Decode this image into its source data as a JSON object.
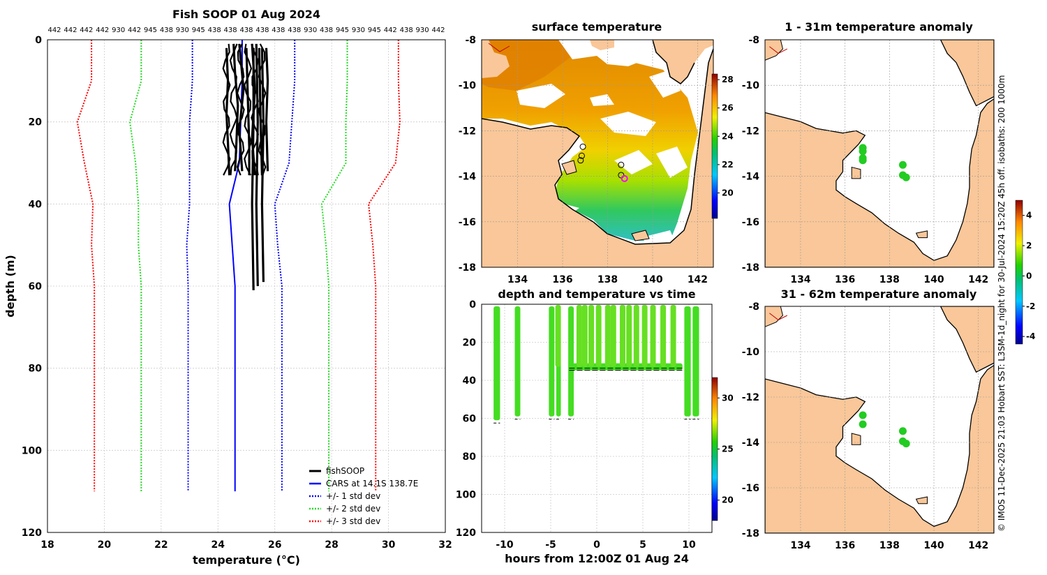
{
  "chart_data": [
    {
      "id": "profile",
      "type": "line",
      "title": "Fish SOOP 01 Aug 2024",
      "xlabel": "temperature (°C)",
      "ylabel": "depth (m)",
      "xlim": [
        18,
        32
      ],
      "ylim": [
        0,
        120
      ],
      "xticks": [
        18,
        20,
        22,
        24,
        26,
        28,
        30,
        32
      ],
      "yticks": [
        0,
        20,
        40,
        60,
        80,
        100,
        120
      ],
      "top_labels": [
        "442",
        "442",
        "442",
        "442",
        "930",
        "442",
        "945",
        "438",
        "930",
        "945",
        "438",
        "438",
        "438",
        "438",
        "438",
        "438",
        "930",
        "438",
        "945",
        "930",
        "945",
        "442",
        "438",
        "930",
        "442"
      ],
      "legend": [
        "fishSOOP",
        "CARS at 14.1S 138.7E",
        "+/- 1 std dev",
        "+/- 2 std dev",
        "+/- 3 std dev"
      ],
      "cars_depth": [
        0,
        10,
        20,
        30,
        40,
        50,
        60,
        110
      ],
      "cars_mean": [
        24.85,
        24.85,
        24.8,
        24.75,
        24.4,
        24.5,
        24.6,
        24.6
      ],
      "std_lines": [
        {
          "name": "+1 std",
          "color": "#0000ff",
          "values": [
            26.7,
            26.7,
            26.6,
            26.5,
            26.0,
            26.1,
            26.25,
            26.25
          ]
        },
        {
          "name": "-1 std",
          "color": "#0000ff",
          "values": [
            23.1,
            23.1,
            23.0,
            23.0,
            23.0,
            22.9,
            22.95,
            22.95
          ]
        },
        {
          "name": "+2 std",
          "color": "#22dd22",
          "values": [
            28.55,
            28.55,
            28.5,
            28.5,
            27.65,
            27.8,
            27.9,
            27.9
          ]
        },
        {
          "name": "-2 std",
          "color": "#22dd22",
          "values": [
            21.3,
            21.3,
            20.9,
            21.1,
            21.2,
            21.2,
            21.3,
            21.3
          ]
        },
        {
          "name": "+3 std",
          "color": "#ff0000",
          "values": [
            30.35,
            30.35,
            30.4,
            30.25,
            29.3,
            29.45,
            29.55,
            29.55
          ]
        },
        {
          "name": "-3 std",
          "color": "#ff0000",
          "values": [
            19.55,
            19.55,
            19.05,
            19.3,
            19.6,
            19.55,
            19.65,
            19.65
          ]
        }
      ],
      "fish_profiles": [
        {
          "depth": [
            2,
            10,
            18,
            25,
            33
          ],
          "temp": [
            24.3,
            24.35,
            24.3,
            24.35,
            24.4
          ]
        },
        {
          "depth": [
            1,
            8,
            16,
            25,
            32
          ],
          "temp": [
            24.55,
            24.6,
            24.7,
            24.65,
            24.6
          ]
        },
        {
          "depth": [
            1,
            12,
            22,
            32
          ],
          "temp": [
            24.75,
            24.9,
            24.75,
            24.85
          ]
        },
        {
          "depth": [
            2,
            14,
            26,
            33
          ],
          "temp": [
            25.0,
            25.05,
            25.1,
            25.1
          ]
        },
        {
          "depth": [
            1,
            12,
            24,
            33
          ],
          "temp": [
            25.2,
            25.3,
            25.2,
            25.3
          ]
        },
        {
          "depth": [
            2,
            20,
            33
          ],
          "temp": [
            25.45,
            25.5,
            25.55
          ]
        },
        {
          "depth": [
            2,
            10,
            20,
            32
          ],
          "temp": [
            25.7,
            25.75,
            25.7,
            25.75
          ]
        },
        {
          "depth": [
            2,
            20,
            40,
            61
          ],
          "temp": [
            25.25,
            25.25,
            25.2,
            25.25
          ]
        },
        {
          "depth": [
            2,
            20,
            40,
            59
          ],
          "temp": [
            25.55,
            25.6,
            25.55,
            25.6
          ]
        },
        {
          "depth": [
            1,
            20,
            40,
            60
          ],
          "temp": [
            25.35,
            25.4,
            25.35,
            25.4
          ]
        }
      ],
      "colors": {
        "fish": "#000000",
        "cars": "#0000ff"
      }
    },
    {
      "id": "sst_map",
      "type": "heatmap",
      "title": "surface temperature",
      "lon_ticks": [
        134,
        136,
        138,
        140,
        142
      ],
      "lat_ticks": [
        -8,
        -10,
        -12,
        -14,
        -16,
        -18
      ],
      "colorbar_ticks": [
        20,
        22,
        24,
        26,
        28
      ],
      "colorbar_range": [
        18.2,
        28.4
      ],
      "stations": [
        {
          "lon": 136.9,
          "lat": -12.7
        },
        {
          "lon": 136.85,
          "lat": -13.1
        },
        {
          "lon": 136.8,
          "lat": -13.3
        },
        {
          "lon": 138.6,
          "lat": -13.5
        },
        {
          "lon": 138.6,
          "lat": -13.95
        },
        {
          "lon": 138.75,
          "lat": -14.1,
          "highlight": true
        }
      ]
    },
    {
      "id": "depth_time",
      "type": "scatter",
      "title": "depth and temperature vs time",
      "xlabel": "hours from 12:00Z 01 Aug 24",
      "xlim": [
        -12.5,
        12.5
      ],
      "ylim": [
        0,
        120
      ],
      "xticks": [
        -10,
        -5,
        0,
        5,
        10
      ],
      "yticks": [
        0,
        20,
        40,
        60,
        80,
        100,
        120
      ],
      "colorbar_ticks": [
        20,
        25,
        30
      ],
      "colorbar_range": [
        18,
        32
      ],
      "deep_casts": [
        {
          "t0": -11.2,
          "t1": -10.5,
          "depth": 61
        },
        {
          "t0": -8.9,
          "t1": -8.3,
          "depth": 59
        },
        {
          "t0": -5.2,
          "t1": -4.6,
          "depth": 59
        },
        {
          "t0": -4.4,
          "t1": -3.9,
          "depth": 59
        },
        {
          "t0": -3.1,
          "t1": -2.5,
          "depth": 59
        },
        {
          "t0": 9.5,
          "t1": 10.2,
          "depth": 59
        },
        {
          "t0": 10.4,
          "t1": 11.1,
          "depth": 59
        }
      ],
      "plateau": {
        "t0": -3.0,
        "t1": 9.3,
        "depth": 34
      },
      "shallow_casts": [
        -4.2,
        -1.9,
        -1.3,
        -0.6,
        0.2,
        1.2,
        1.8,
        2.8,
        3.5,
        4.3,
        5.2,
        6.1,
        7.2,
        8.3
      ],
      "gap_cast": {
        "t": -9.4,
        "top": 9,
        "bottom": 19
      }
    },
    {
      "id": "anom_1",
      "type": "scatter",
      "title": "1 - 31m temperature anomaly",
      "points": [
        {
          "lon": 136.8,
          "lat": -12.75,
          "anom": 0.1
        },
        {
          "lon": 136.8,
          "lat": -12.9,
          "anom": 0.0
        },
        {
          "lon": 136.8,
          "lat": -13.2,
          "anom": 0.1
        },
        {
          "lon": 136.8,
          "lat": -13.3,
          "anom": 0.0
        },
        {
          "lon": 138.6,
          "lat": -13.5,
          "anom": 0.1
        },
        {
          "lon": 138.6,
          "lat": -13.95,
          "anom": 0.0
        },
        {
          "lon": 138.75,
          "lat": -14.05,
          "anom": 0.1
        }
      ]
    },
    {
      "id": "anom_2",
      "type": "scatter",
      "title": "31 - 62m temperature anomaly",
      "points": [
        {
          "lon": 136.8,
          "lat": -12.8,
          "anom": 0.1
        },
        {
          "lon": 136.8,
          "lat": -13.2,
          "anom": 0.0
        },
        {
          "lon": 138.6,
          "lat": -13.5,
          "anom": 0.1
        },
        {
          "lon": 138.6,
          "lat": -13.95,
          "anom": 0.0
        },
        {
          "lon": 138.75,
          "lat": -14.05,
          "anom": 0.1
        }
      ]
    },
    {
      "id": "anom_colorbar",
      "type": "colorbar",
      "ticks": [
        -4,
        -2,
        0,
        2,
        4
      ],
      "range": [
        -4.5,
        5
      ]
    }
  ],
  "side_note": "© IMOS 11-Dec-2025 21:03 Hobart SST: L3SM-1d_night for 30-Jul-2024 15:20Z 45h off. isobaths: 200  1000m"
}
